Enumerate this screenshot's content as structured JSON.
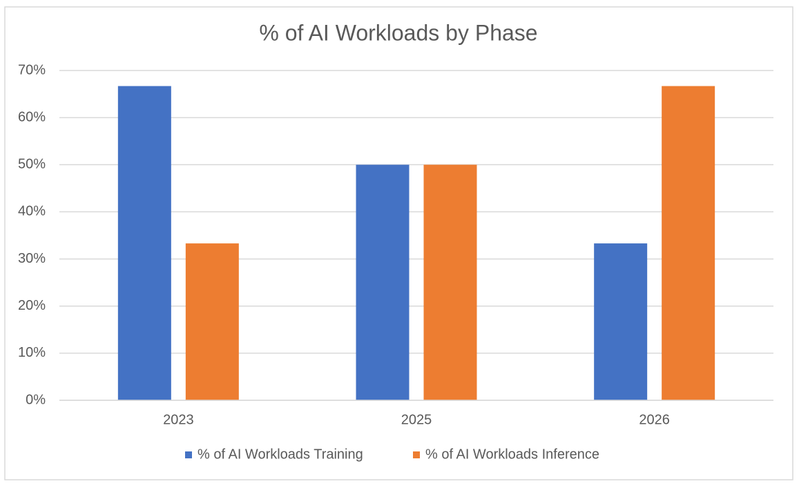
{
  "chart_data": {
    "type": "bar",
    "title": "% of AI Workloads by Phase",
    "categories": [
      "2023",
      "2025",
      "2026"
    ],
    "series": [
      {
        "name": "% of AI Workloads Training",
        "color": "#4472c4",
        "values": [
          66.7,
          50,
          33.3
        ]
      },
      {
        "name": "% of AI Workloads Inference",
        "color": "#ed7d31",
        "values": [
          33.3,
          50,
          66.7
        ]
      }
    ],
    "ylim": [
      0,
      70
    ],
    "yticks": [
      {
        "value": 0,
        "label": "0%"
      },
      {
        "value": 10,
        "label": "10%"
      },
      {
        "value": 20,
        "label": "20%"
      },
      {
        "value": 30,
        "label": "30%"
      },
      {
        "value": 40,
        "label": "40%"
      },
      {
        "value": 50,
        "label": "50%"
      },
      {
        "value": 60,
        "label": "60%"
      },
      {
        "value": 70,
        "label": "70%"
      }
    ],
    "grid": true,
    "legend": "bottom"
  }
}
